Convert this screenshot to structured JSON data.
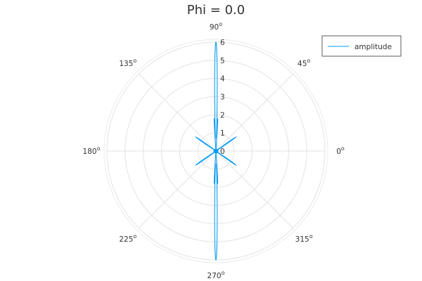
{
  "chart_data": {
    "type": "line",
    "coordinate_system": "polar",
    "title": "Phi = 0.0",
    "grid": true,
    "legend_position": "top-right",
    "series_color": "#009AF9",
    "series": [
      {
        "name": "amplitude"
      }
    ],
    "r_lim": [
      0,
      6
    ],
    "r_ticks": [
      0,
      1,
      2,
      3,
      4,
      5,
      6
    ],
    "angle_ticks_deg": [
      0,
      45,
      90,
      135,
      180,
      225,
      270,
      315
    ],
    "angle_labels": [
      "0",
      "45",
      "90",
      "135",
      "180",
      "225",
      "270",
      "315"
    ],
    "angle_label_suffix": "o",
    "lobes": [
      {
        "angle_deg": 90,
        "peak": 6.0,
        "side_peak": 1.8
      },
      {
        "angle_deg": 270,
        "peak": 6.0,
        "side_peak": 1.8
      },
      {
        "angle_deg": 35,
        "peak": 1.35
      },
      {
        "angle_deg": 145,
        "peak": 1.35
      },
      {
        "angle_deg": 215,
        "peak": 1.35
      },
      {
        "angle_deg": 325,
        "peak": 1.35
      }
    ]
  }
}
